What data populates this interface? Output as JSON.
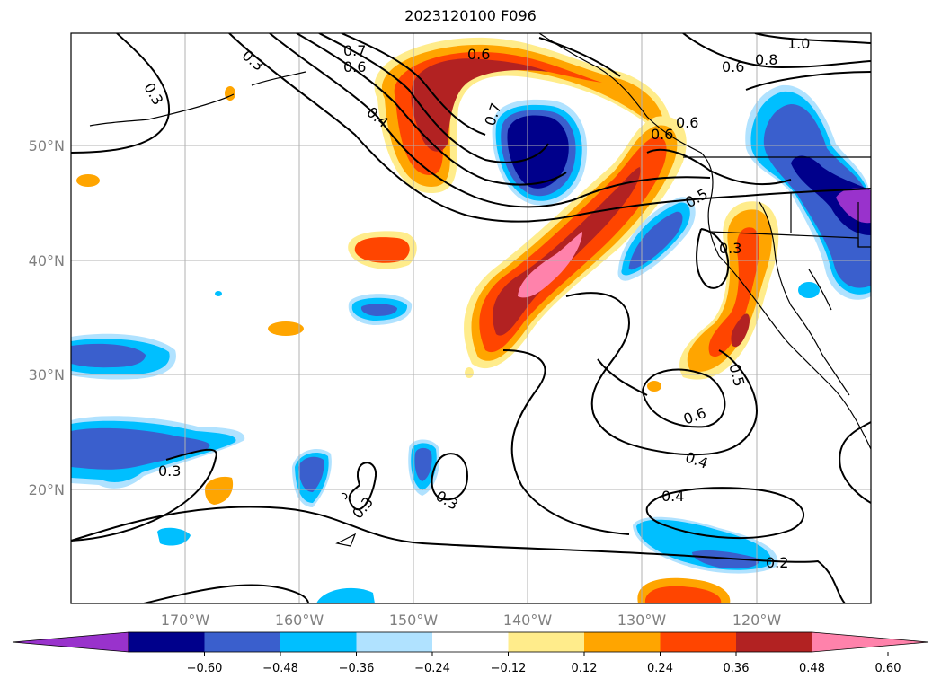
{
  "title": "2023120100 F096",
  "map": {
    "lon_range": [
      -180,
      -110
    ],
    "lat_range": [
      10,
      60
    ],
    "lat_ticks": [
      "50°N",
      "40°N",
      "30°N",
      "20°N"
    ],
    "lon_ticks": [
      "170°W",
      "160°W",
      "150°W",
      "140°W",
      "130°W",
      "120°W"
    ],
    "contour_labels": [
      "0.3",
      "0.3",
      "0.6",
      "0.4",
      "0.6",
      "0.7",
      "1.0",
      "0.8",
      "0.6",
      "0.6",
      "0.7",
      "0.6",
      "0.5",
      "0.3",
      "0.5",
      "0.6",
      "0.4",
      "0.4",
      "0.2",
      "0.3",
      "0.3",
      "0.3"
    ],
    "grid": true
  },
  "colorbar": {
    "tick_labels": [
      "−0.60",
      "−0.48",
      "−0.36",
      "−0.24",
      "−0.12",
      "0.12",
      "0.24",
      "0.36",
      "0.48",
      "0.60"
    ],
    "colors": [
      "#9932cc",
      "#00008b",
      "#3a5fcd",
      "#00bfff",
      "#b0e2ff",
      "#ffffff",
      "#ffec8b",
      "#ffa500",
      "#ff4500",
      "#b22222",
      "#ff82ab"
    ],
    "extend": "both"
  }
}
